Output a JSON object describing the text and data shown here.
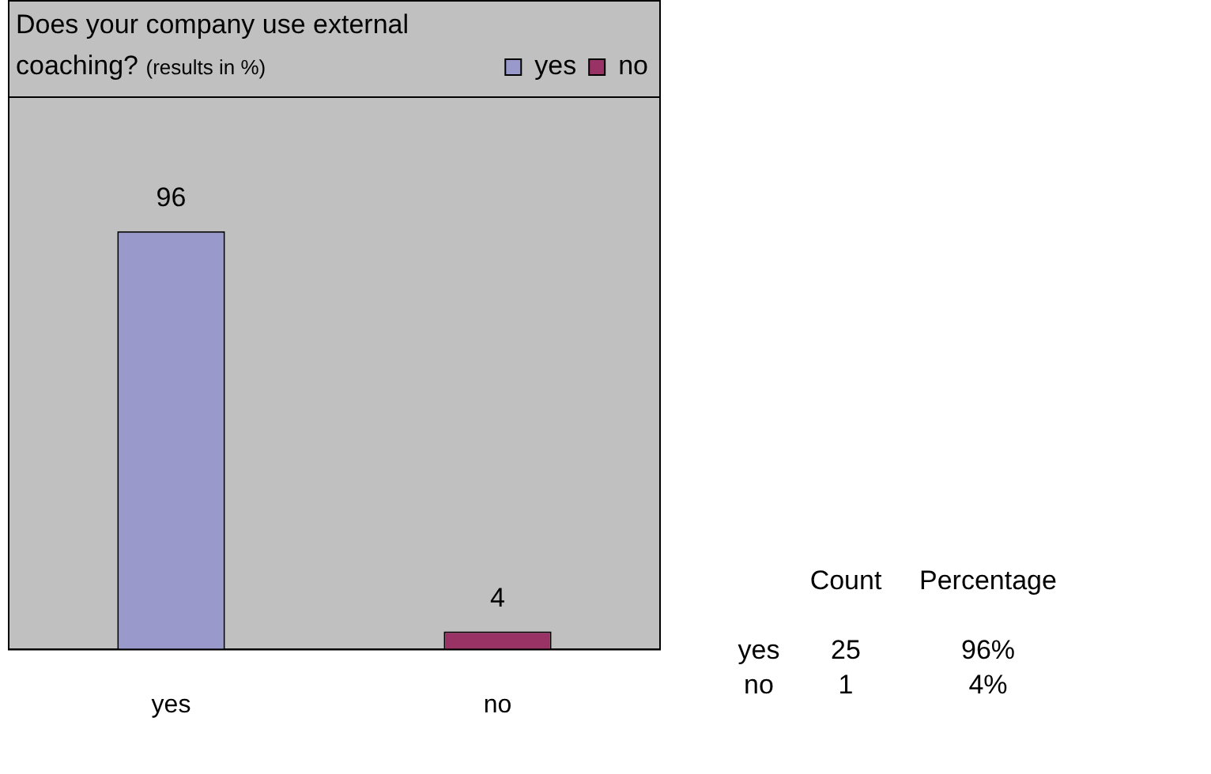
{
  "chart_data": {
    "type": "bar",
    "title": "Does your company use external coaching?",
    "subtitle": "(results in %)",
    "categories": [
      "yes",
      "no"
    ],
    "series": [
      {
        "name": "yes",
        "color": "#9999cc",
        "values": [
          96,
          null
        ]
      },
      {
        "name": "no",
        "color": "#993366",
        "values": [
          null,
          4
        ]
      }
    ],
    "ylim": [
      0,
      127
    ],
    "tick_labels": "x",
    "data_labels": true,
    "grid": false,
    "legend": "top right",
    "annotations": [
      "Count",
      "Percentage",
      "yes",
      "25",
      "96%",
      "no",
      "1",
      "4%"
    ]
  }
}
